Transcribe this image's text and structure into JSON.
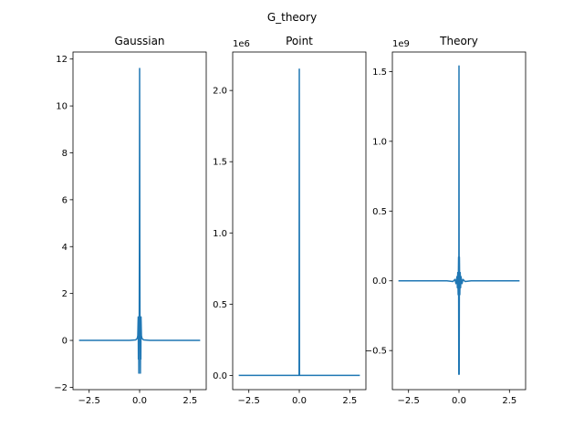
{
  "figure": {
    "suptitle": "G_theory"
  },
  "chart_data": [
    {
      "type": "line",
      "title": "Gaussian",
      "offset_text": "",
      "xlim": [
        -3.3,
        3.3
      ],
      "ylim": [
        -2.1,
        12.3
      ],
      "xticks": [
        -2.5,
        0.0,
        2.5
      ],
      "xtick_labels": [
        "−2.5",
        "0.0",
        "2.5"
      ],
      "yticks": [
        -2,
        0,
        2,
        4,
        6,
        8,
        10,
        12
      ],
      "ytick_labels": [
        "−2",
        "0",
        "2",
        "4",
        "6",
        "8",
        "10",
        "12"
      ],
      "series": [
        {
          "x": [
            -3.0,
            -1.0,
            -0.5,
            -0.2,
            -0.12,
            -0.09,
            -0.07,
            -0.06,
            -0.05,
            -0.04,
            -0.03,
            -0.02,
            -0.01,
            0.0,
            0.01,
            0.02,
            0.03,
            0.04,
            0.05,
            0.06,
            0.07,
            0.09,
            0.12,
            0.2,
            0.5,
            1.0,
            3.0
          ],
          "y": [
            0,
            0,
            0,
            0.02,
            0.08,
            0.2,
            1.0,
            -0.8,
            1.0,
            -1.4,
            1.0,
            0.5,
            4.0,
            11.6,
            4.0,
            0.5,
            1.0,
            -1.4,
            1.0,
            -0.8,
            1.0,
            0.2,
            0.08,
            0.02,
            0,
            0,
            0
          ],
          "color": "#1f77b4"
        }
      ]
    },
    {
      "type": "line",
      "title": "Point",
      "offset_text": "1e6",
      "xlim": [
        -3.3,
        3.3
      ],
      "ylim": [
        -0.1,
        2.27
      ],
      "xticks": [
        -2.5,
        0.0,
        2.5
      ],
      "xtick_labels": [
        "−2.5",
        "0.0",
        "2.5"
      ],
      "yticks": [
        0.0,
        0.5,
        1.0,
        1.5,
        2.0
      ],
      "ytick_labels": [
        "0.0",
        "0.5",
        "1.0",
        "1.5",
        "2.0"
      ],
      "series": [
        {
          "x": [
            -3.0,
            -0.01,
            0.0,
            0.01,
            3.0
          ],
          "y": [
            0,
            0,
            2.15,
            0,
            0
          ],
          "color": "#1f77b4"
        }
      ]
    },
    {
      "type": "line",
      "title": "Theory",
      "offset_text": "1e9",
      "xlim": [
        -3.3,
        3.3
      ],
      "ylim": [
        -0.78,
        1.64
      ],
      "xticks": [
        -2.5,
        0.0,
        2.5
      ],
      "xtick_labels": [
        "−2.5",
        "0.0",
        "2.5"
      ],
      "yticks": [
        -0.5,
        0.0,
        0.5,
        1.0,
        1.5
      ],
      "ytick_labels": [
        "−0.5",
        "0.0",
        "0.5",
        "1.0",
        "1.5"
      ],
      "series": [
        {
          "x": [
            -3.0,
            -0.6,
            -0.3,
            -0.2,
            -0.15,
            -0.1,
            -0.08,
            -0.06,
            -0.04,
            -0.02,
            -0.01,
            0.0,
            0.01,
            0.02,
            0.04,
            0.06,
            0.08,
            0.1,
            0.15,
            0.2,
            0.3,
            0.6,
            3.0
          ],
          "y": [
            0,
            0,
            -0.005,
            0.01,
            -0.02,
            0.03,
            -0.05,
            0.06,
            -0.1,
            0.17,
            -0.67,
            1.54,
            -0.67,
            0.17,
            -0.1,
            0.06,
            -0.05,
            0.03,
            -0.02,
            0.01,
            -0.005,
            0,
            0
          ],
          "color": "#1f77b4"
        }
      ]
    }
  ]
}
